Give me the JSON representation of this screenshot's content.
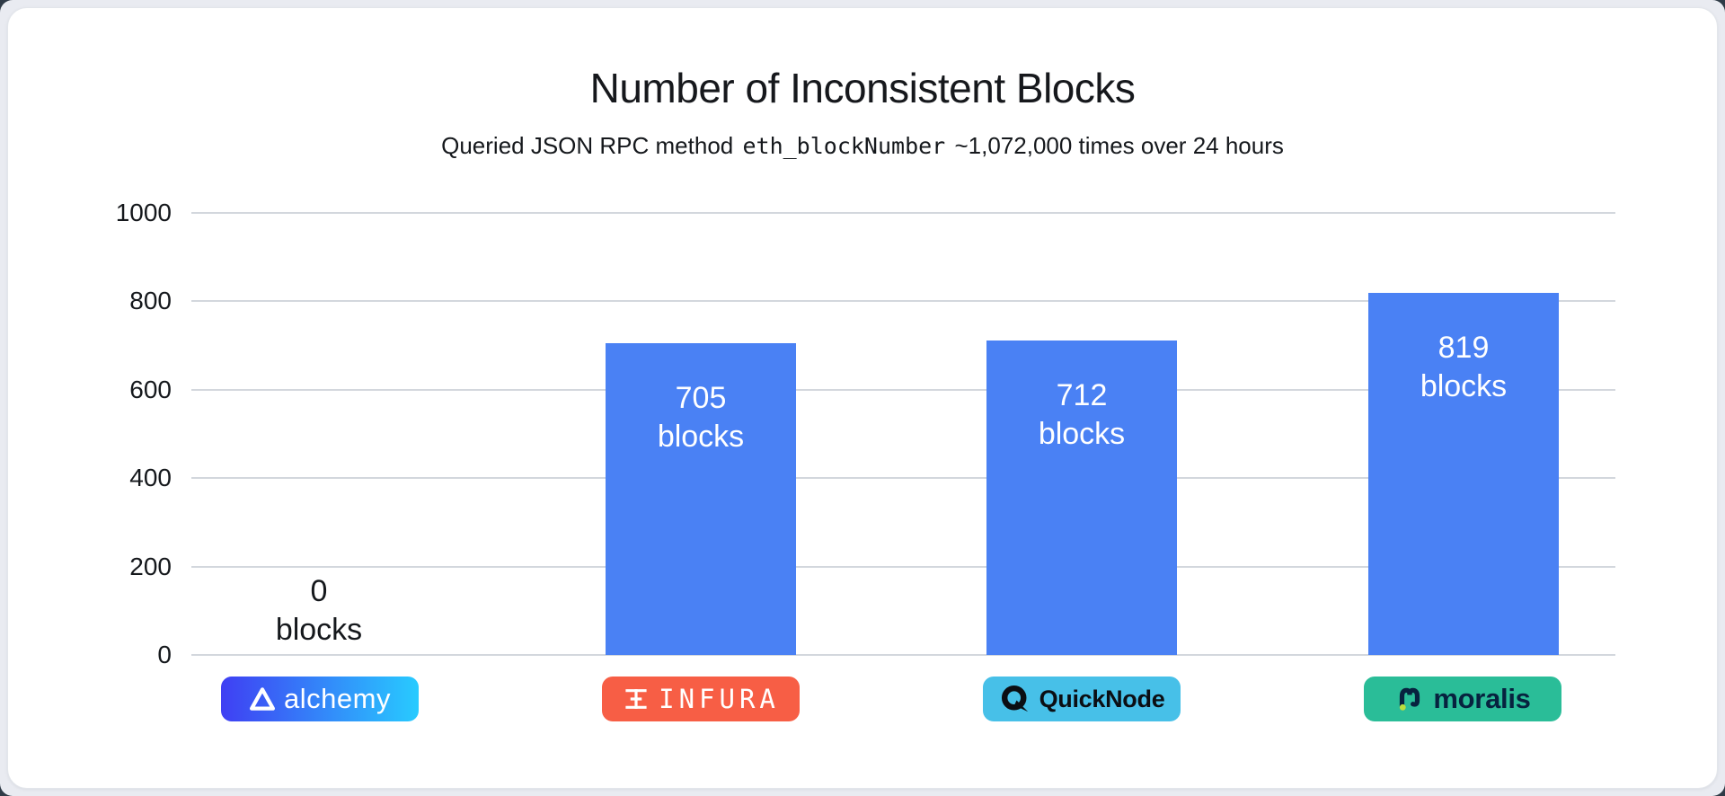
{
  "header": {
    "title": "Number of Inconsistent Blocks",
    "subtitle_prefix": "Queried JSON RPC method ",
    "subtitle_code": "eth_blockNumber",
    "subtitle_suffix": " ~1,072,000 times over 24 hours"
  },
  "chart_data": {
    "type": "bar",
    "title": "Number of Inconsistent Blocks",
    "subtitle": "Queried JSON RPC method eth_blockNumber ~1,072,000 times over 24 hours",
    "categories": [
      "alchemy",
      "INFURA",
      "QuickNode",
      "moralis"
    ],
    "values": [
      0,
      705,
      712,
      819
    ],
    "unit": "blocks",
    "xlabel": "",
    "ylabel": "",
    "ylim": [
      0,
      1000
    ],
    "yticks": [
      0,
      200,
      400,
      600,
      800,
      1000
    ],
    "grid": true,
    "legend": false,
    "bar_color": "#4A81F4"
  },
  "providers": [
    {
      "name": "alchemy",
      "value": 0,
      "value_text": "0",
      "unit_text": "blocks",
      "logo_text": "alchemy",
      "badge_bg": "linear-gradient(90deg, #3F3FF3 0%, #28CBFF 100%)",
      "logo_icon": "alchemy-triangle-icon"
    },
    {
      "name": "INFURA",
      "value": 705,
      "value_text": "705",
      "unit_text": "blocks",
      "logo_text": "INFURA",
      "badge_bg": "#F75E45",
      "logo_icon": "infura-mark-icon"
    },
    {
      "name": "QuickNode",
      "value": 712,
      "value_text": "712",
      "unit_text": "blocks",
      "logo_text": "QuickNode",
      "badge_bg": "#47C0E8",
      "logo_icon": "quicknode-q-icon"
    },
    {
      "name": "moralis",
      "value": 819,
      "value_text": "819",
      "unit_text": "blocks",
      "logo_text": "moralis",
      "badge_bg": "#2ABD98",
      "logo_icon": "moralis-m-icon"
    }
  ],
  "colors": {
    "bar": "#4A81F4",
    "grid_line": "#D3D7DD",
    "bar_label": "#FFFFFF",
    "zero_label": "#15181C",
    "title_text": "#16181C",
    "page_bg": "#E9EBF1",
    "outer_bg": "#2F3B47",
    "card_bg": "#FFFFFF",
    "alchemy_gradient_start": "#3F3FF3",
    "alchemy_gradient_end": "#28CBFF",
    "infura_badge": "#F75E45",
    "quicknode_badge": "#47C0E8",
    "moralis_badge": "#2ABD98",
    "moralis_dot": "#B9DF3E"
  }
}
